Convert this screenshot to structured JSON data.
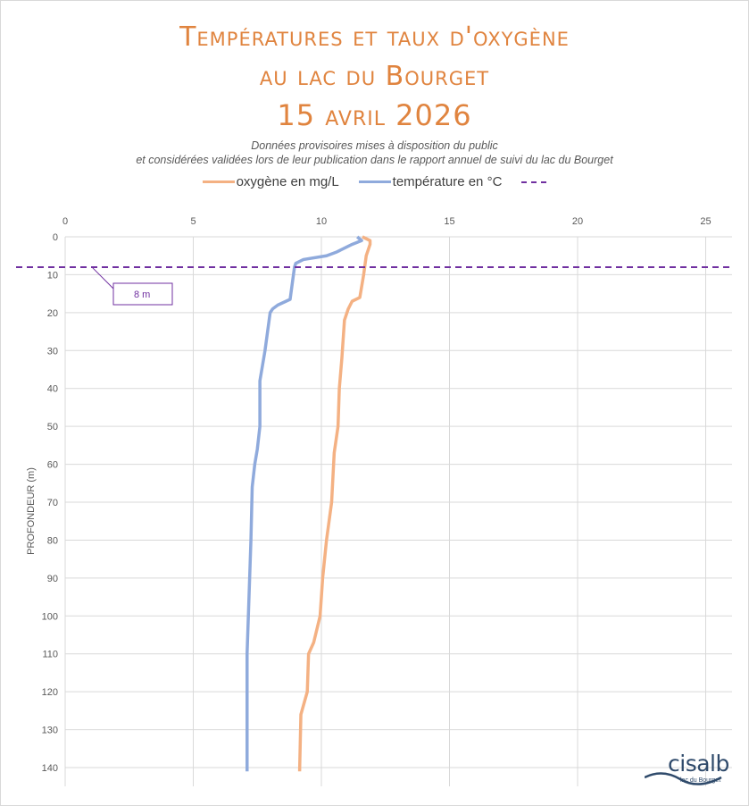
{
  "title_lines": [
    "Températures et taux d'oxygène",
    "au lac du Bourget",
    "15 avril 2026"
  ],
  "subtitle_lines": [
    "Données provisoires mises à disposition du public",
    "et considérées validées lors de leur publication dans le rapport annuel de suivi du lac du Bourget"
  ],
  "logo": {
    "name": "cisalb",
    "tagline": "lac du Bourget"
  },
  "chart_data": {
    "type": "line",
    "title": "Températures et taux d'oxygène au lac du Bourget 15 avril 2026",
    "xlabel": "",
    "ylabel": "PROFONDEUR (m)",
    "xlim": [
      0,
      26
    ],
    "ylim": [
      0,
      145
    ],
    "y_inverted": true,
    "x_axis_position": "top",
    "x_ticks": [
      0,
      5,
      10,
      15,
      20,
      25
    ],
    "y_ticks": [
      0,
      10,
      20,
      30,
      40,
      50,
      60,
      70,
      80,
      90,
      100,
      110,
      120,
      130,
      140
    ],
    "grid": true,
    "legend_position": "top",
    "colors": {
      "oxygen": "#F4B183",
      "temperature": "#8FAADC",
      "threshold": "#7030A0"
    },
    "series": [
      {
        "name": "oxygène en mg/L",
        "depth": [
          0,
          1,
          2,
          5,
          10,
          16,
          17,
          19,
          22,
          32,
          40,
          50,
          57,
          70,
          80,
          90,
          100,
          107,
          110,
          120,
          126,
          141
        ],
        "values": [
          11.6,
          11.9,
          11.9,
          11.75,
          11.65,
          11.5,
          11.2,
          11.05,
          10.9,
          10.8,
          10.7,
          10.65,
          10.5,
          10.4,
          10.2,
          10.05,
          9.95,
          9.7,
          9.5,
          9.45,
          9.2,
          9.15
        ]
      },
      {
        "name": "température en °C",
        "depth": [
          0,
          1,
          2,
          4,
          5,
          6,
          7,
          8,
          16.5,
          18,
          19,
          20,
          25,
          30,
          38,
          50,
          56,
          60,
          66,
          80,
          90,
          100,
          110,
          141
        ],
        "values": [
          11.4,
          11.57,
          11.2,
          10.6,
          10.2,
          9.3,
          9.0,
          8.95,
          8.78,
          8.3,
          8.1,
          8.0,
          7.9,
          7.8,
          7.6,
          7.6,
          7.5,
          7.4,
          7.3,
          7.25,
          7.2,
          7.15,
          7.1,
          7.1
        ]
      }
    ],
    "threshold": {
      "name": "",
      "depth": 8,
      "label": "8 m"
    }
  }
}
